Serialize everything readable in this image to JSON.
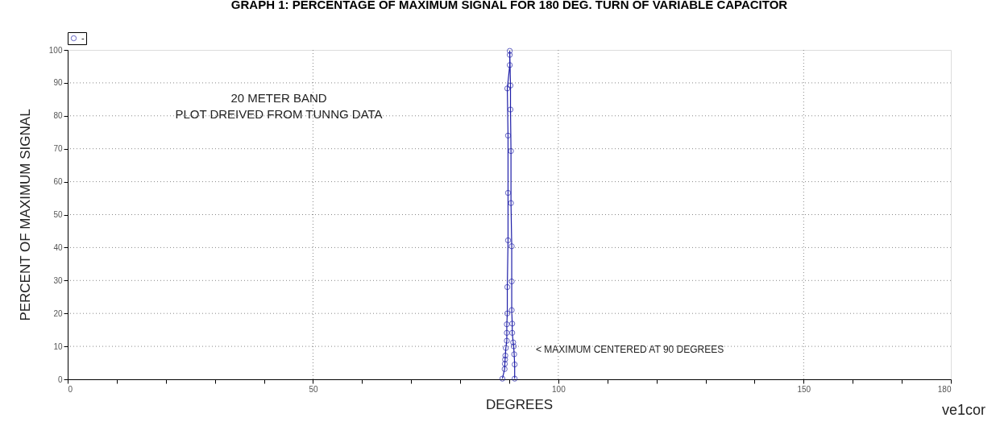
{
  "chart_data": {
    "type": "line",
    "title": "GRAPH 1: PERCENTAGE OF MAXIMUM SIGNAL FOR 180 DEG. TURN OF VARIABLE CAPACITOR",
    "xlabel": "DEGREES",
    "ylabel": "PERCENT OF MAXIMUM SIGNAL",
    "series": [
      {
        "name": "-",
        "color": "#1f1fa8",
        "x": [
          88.6,
          89.05,
          89.1,
          89.15,
          89.2,
          89.3,
          89.5,
          89.5,
          89.5,
          89.6,
          89.6,
          89.75,
          89.75,
          89.75,
          89.6,
          90.1,
          90.1,
          90.1,
          90.25,
          90.25,
          90.35,
          90.35,
          90.5,
          90.5,
          90.5,
          90.6,
          90.6,
          90.8,
          90.9,
          91.0,
          91.1,
          91.1
        ],
        "values": [
          0.2,
          3.1,
          4.7,
          6.0,
          7.2,
          9.5,
          11.7,
          14.1,
          16.7,
          20.0,
          28.0,
          42.2,
          56.6,
          74.0,
          88.3,
          95.4,
          98.5,
          99.7,
          89.2,
          81.9,
          69.3,
          53.5,
          40.4,
          29.7,
          21.0,
          16.9,
          14.1,
          11.2,
          10.0,
          7.6,
          4.5,
          0.2
        ]
      }
    ],
    "xlim": [
      0,
      180
    ],
    "ylim": [
      0,
      100
    ],
    "xticks": [
      0,
      {
        "value": 10,
        "label": null
      },
      {
        "value": 20,
        "label": null
      },
      {
        "value": 30,
        "label": null
      },
      {
        "value": 40,
        "label": null
      },
      50,
      {
        "value": 60,
        "label": null
      },
      {
        "value": 70,
        "label": null
      },
      {
        "value": 80,
        "label": null
      },
      {
        "value": 90,
        "label": null
      },
      100,
      {
        "value": 110,
        "label": null
      },
      {
        "value": 120,
        "label": null
      },
      {
        "value": 130,
        "label": null
      },
      {
        "value": 140,
        "label": null
      },
      150,
      {
        "value": 160,
        "label": null
      },
      {
        "value": 170,
        "label": null
      },
      180
    ],
    "yticks": [
      0,
      10,
      20,
      30,
      40,
      50,
      60,
      70,
      80,
      90,
      100
    ],
    "grid": true,
    "legend": "top left",
    "marker": "circle",
    "line_style": "solid",
    "annotations": [
      "20 METER BAND",
      "PLOT DREIVED FROM TUNNG DATA",
      "< MAXIMUM CENTERED AT 90 DEGREES",
      "ve1cor"
    ]
  }
}
